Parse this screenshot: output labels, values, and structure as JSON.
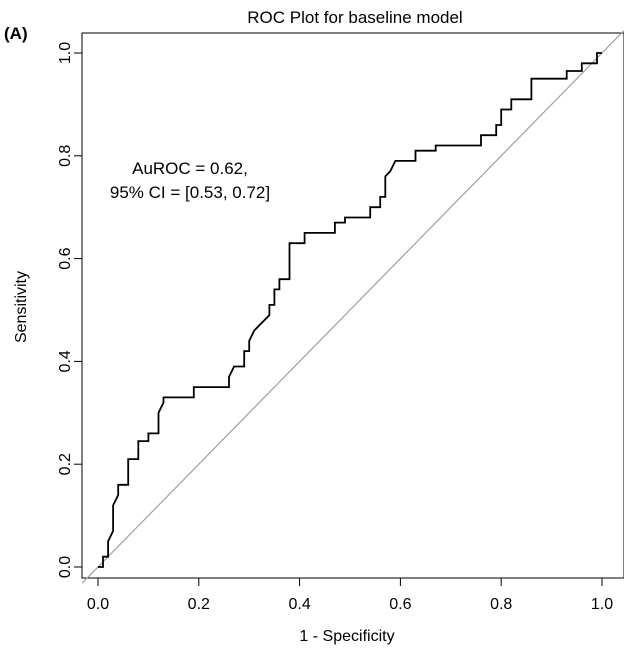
{
  "panel_label": "(A)",
  "chart_data": {
    "type": "line",
    "title": "ROC Plot for baseline model",
    "xlabel": "1 - Specificity",
    "ylabel": "Sensitivity",
    "xlim": [
      0,
      1
    ],
    "ylim": [
      0,
      1
    ],
    "x_ticks": [
      "0.0",
      "0.2",
      "0.4",
      "0.6",
      "0.8",
      "1.0"
    ],
    "y_ticks": [
      "0.0",
      "0.2",
      "0.4",
      "0.6",
      "0.8",
      "1.0"
    ],
    "grid": false,
    "annotation": [
      "AuROC = 0.62,",
      "95% CI = [0.53, 0.72]"
    ],
    "diagonal": {
      "x": [
        0,
        1
      ],
      "y": [
        0,
        1
      ],
      "color": "#a0a0a0"
    },
    "series": [
      {
        "color": "#000000",
        "x": [
          0.0,
          0.01,
          0.01,
          0.02,
          0.02,
          0.03,
          0.03,
          0.04,
          0.04,
          0.05,
          0.06,
          0.06,
          0.08,
          0.08,
          0.1,
          0.1,
          0.11,
          0.12,
          0.12,
          0.13,
          0.13,
          0.14,
          0.19,
          0.19,
          0.26,
          0.26,
          0.27,
          0.29,
          0.29,
          0.3,
          0.3,
          0.31,
          0.32,
          0.32,
          0.34,
          0.34,
          0.35,
          0.35,
          0.36,
          0.36,
          0.37,
          0.37,
          0.38,
          0.38,
          0.41,
          0.41,
          0.43,
          0.43,
          0.47,
          0.47,
          0.49,
          0.49,
          0.54,
          0.54,
          0.56,
          0.56,
          0.57,
          0.57,
          0.58,
          0.58,
          0.59,
          0.59,
          0.6,
          0.63,
          0.63,
          0.67,
          0.67,
          0.76,
          0.76,
          0.79,
          0.79,
          0.8,
          0.8,
          0.82,
          0.82,
          0.86,
          0.86,
          0.93,
          0.93,
          0.96,
          0.96,
          0.99,
          0.99,
          1.0
        ],
        "y": [
          0.0,
          0.0,
          0.02,
          0.02,
          0.05,
          0.07,
          0.12,
          0.14,
          0.16,
          0.16,
          0.16,
          0.21,
          0.21,
          0.245,
          0.245,
          0.26,
          0.26,
          0.26,
          0.3,
          0.32,
          0.33,
          0.33,
          0.33,
          0.35,
          0.35,
          0.37,
          0.39,
          0.39,
          0.42,
          0.42,
          0.44,
          0.46,
          0.47,
          0.47,
          0.49,
          0.51,
          0.51,
          0.54,
          0.54,
          0.56,
          0.56,
          0.56,
          0.56,
          0.63,
          0.63,
          0.65,
          0.65,
          0.65,
          0.65,
          0.67,
          0.67,
          0.68,
          0.68,
          0.7,
          0.7,
          0.72,
          0.72,
          0.76,
          0.77,
          0.77,
          0.79,
          0.79,
          0.79,
          0.79,
          0.81,
          0.81,
          0.82,
          0.82,
          0.84,
          0.84,
          0.86,
          0.86,
          0.89,
          0.89,
          0.91,
          0.91,
          0.95,
          0.95,
          0.965,
          0.965,
          0.98,
          0.98,
          1.0,
          1.0
        ]
      }
    ]
  }
}
